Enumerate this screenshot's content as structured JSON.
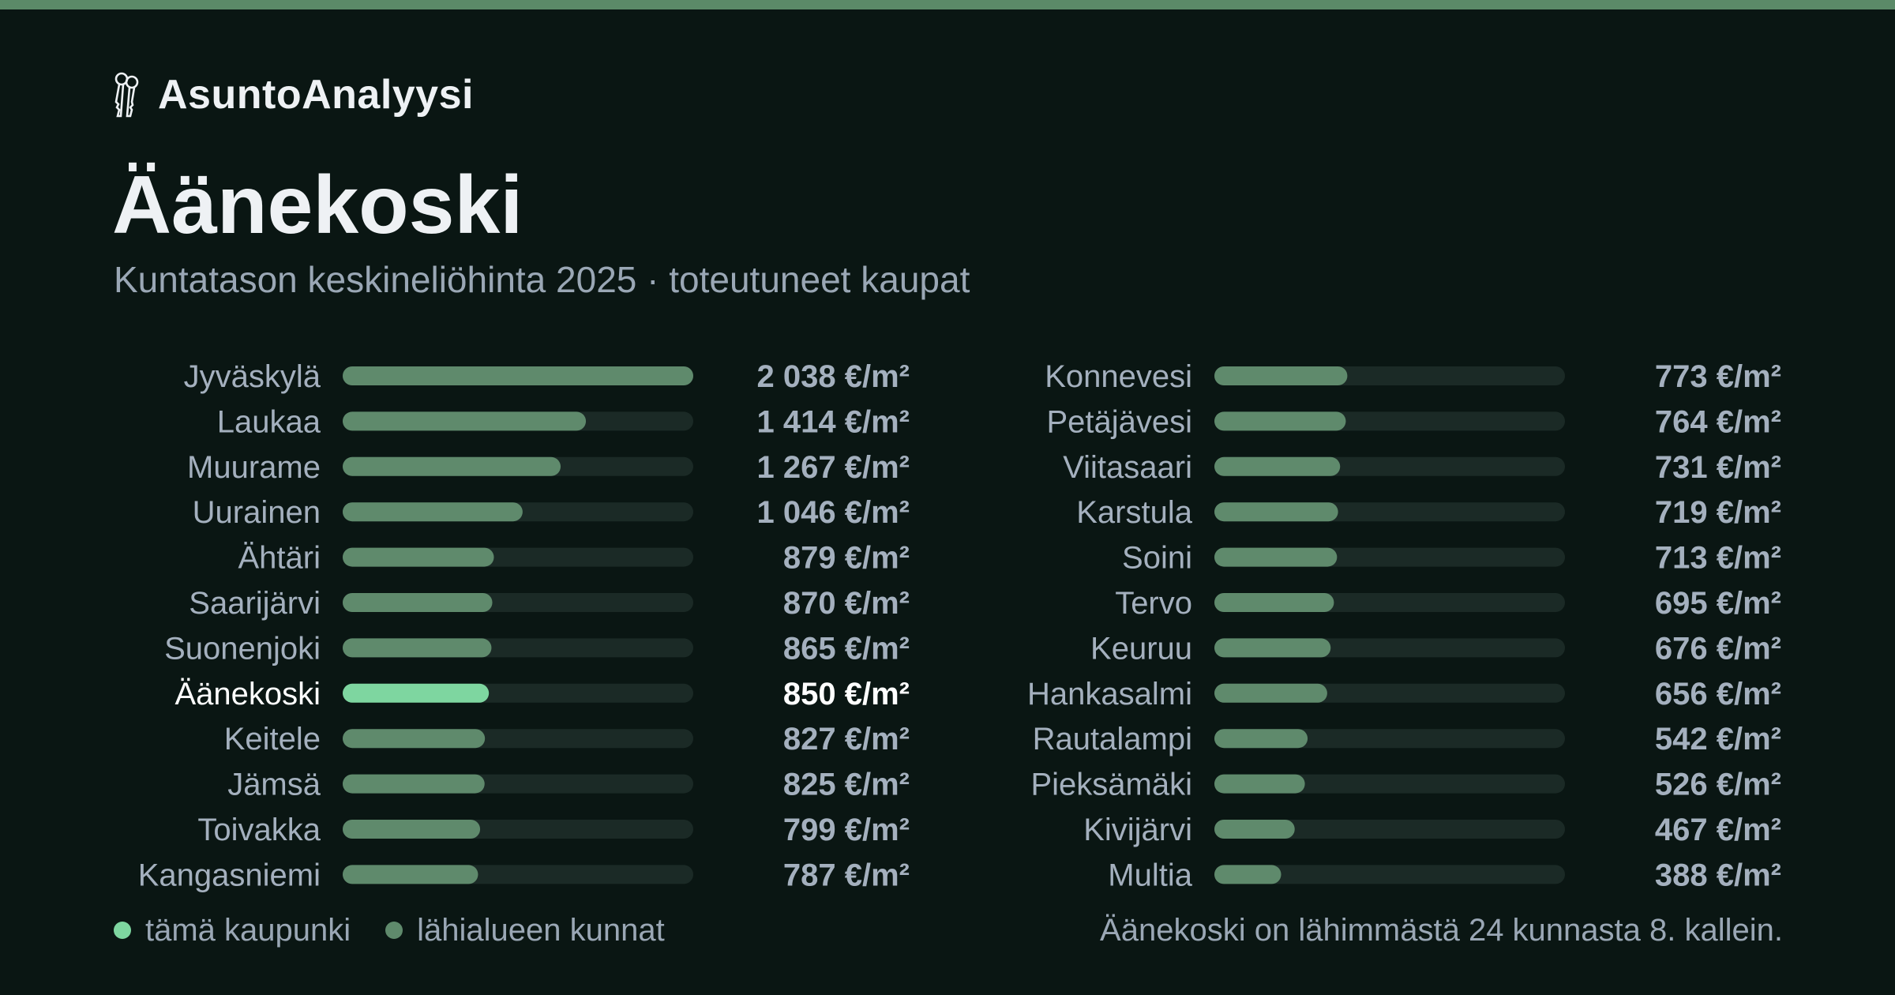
{
  "brand": {
    "name": "AsuntoAnalyysi",
    "icon": "keys-icon"
  },
  "title": "Äänekoski",
  "subtitle": "Kuntatason keskineliöhinta 2025 · toteutuneet kaupat",
  "colors": {
    "highlight": "#7ed6a0",
    "bar": "#5f8a6c",
    "track": "#1b2a26",
    "label": "#a4b0be",
    "highlight_label": "#ffffff",
    "top_accent": "#5b8a68"
  },
  "chart_data": {
    "type": "bar",
    "orientation": "horizontal",
    "unit": "€/m²",
    "highlight": "Äänekoski",
    "columns": 2,
    "categories": [
      "Jyväskylä",
      "Laukaa",
      "Muurame",
      "Uurainen",
      "Ähtäri",
      "Saarijärvi",
      "Suonenjoki",
      "Äänekoski",
      "Keitele",
      "Jämsä",
      "Toivakka",
      "Kangasniemi",
      "Konnevesi",
      "Petäjävesi",
      "Viitasaari",
      "Karstula",
      "Soini",
      "Tervo",
      "Keuruu",
      "Hankasalmi",
      "Rautalampi",
      "Pieksämäki",
      "Kivijärvi",
      "Multia"
    ],
    "values": [
      2038,
      1414,
      1267,
      1046,
      879,
      870,
      865,
      850,
      827,
      825,
      799,
      787,
      773,
      764,
      731,
      719,
      713,
      695,
      676,
      656,
      542,
      526,
      467,
      388
    ],
    "value_labels": [
      "2 038 €/m²",
      "1 414 €/m²",
      "1 267 €/m²",
      "1 046 €/m²",
      "879 €/m²",
      "870 €/m²",
      "865 €/m²",
      "850 €/m²",
      "827 €/m²",
      "825 €/m²",
      "799 €/m²",
      "787 €/m²",
      "773 €/m²",
      "764 €/m²",
      "731 €/m²",
      "719 €/m²",
      "713 €/m²",
      "695 €/m²",
      "676 €/m²",
      "656 €/m²",
      "542 €/m²",
      "526 €/m²",
      "467 €/m²",
      "388 €/m²"
    ],
    "xlim": [
      0,
      2038
    ]
  },
  "legend": {
    "this_city": "tämä kaupunki",
    "nearby": "lähialueen kunnat"
  },
  "footnote": "Äänekoski on lähimmästä 24 kunnasta 8. kallein."
}
